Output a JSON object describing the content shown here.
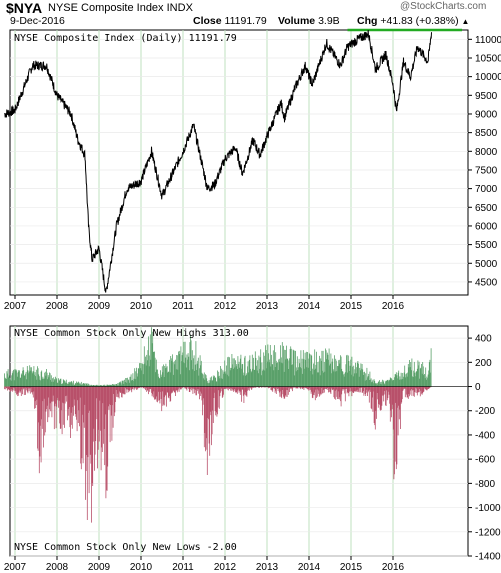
{
  "header": {
    "ticker": "$NYA",
    "name": "NYSE Composite Index",
    "index_type": "INDX",
    "date": "9-Dec-2016",
    "close_label": "Close",
    "close_value": "11191.79",
    "volume_label": "Volume",
    "volume_value": "3.9B",
    "chg_label": "Chg",
    "chg_value": "+41.83 (+0.38%)",
    "watermark": "@StockCharts.com"
  },
  "colors": {
    "price_line": "#000000",
    "resistance_line": "#22aa22",
    "new_highs": "#5aa06a",
    "new_lows": "#b8506a",
    "grid": "#bfe0bf"
  },
  "chart_data": [
    {
      "type": "line",
      "title": "NYSE Composite Index (Daily) 11191.79",
      "series_name": "NYSE Composite Index (Daily)",
      "x_tick_labels": [
        "2007",
        "2008",
        "2009",
        "2010",
        "2011",
        "2012",
        "2013",
        "2014",
        "2015",
        "2016"
      ],
      "y_ticks": [
        4500,
        5000,
        5500,
        6000,
        6500,
        7000,
        7500,
        8000,
        8500,
        9000,
        9500,
        10000,
        10500,
        11000
      ],
      "ylim": [
        4150,
        11250
      ],
      "resistance_level": 11250,
      "x": [
        "2006-10",
        "2007-01",
        "2007-06",
        "2007-10",
        "2008-01",
        "2008-05",
        "2008-07",
        "2008-09",
        "2008-10",
        "2008-11",
        "2009-01",
        "2009-03",
        "2009-06",
        "2009-09",
        "2010-01",
        "2010-04",
        "2010-07",
        "2011-01",
        "2011-04",
        "2011-08",
        "2011-10",
        "2012-01",
        "2012-04",
        "2012-06",
        "2012-09",
        "2012-11",
        "2013-01",
        "2013-05",
        "2013-06",
        "2013-09",
        "2013-12",
        "2014-01",
        "2014-02",
        "2014-06",
        "2014-10",
        "2014-12",
        "2015-03",
        "2015-06",
        "2015-08",
        "2015-11",
        "2016-01",
        "2016-02",
        "2016-04",
        "2016-06",
        "2016-08",
        "2016-11",
        "2016-12"
      ],
      "y": [
        9000,
        9100,
        10300,
        10300,
        9500,
        9000,
        8300,
        7900,
        6000,
        5100,
        5400,
        4200,
        6000,
        7000,
        7200,
        8000,
        6800,
        8000,
        8700,
        7000,
        7100,
        7800,
        8100,
        7400,
        8300,
        7900,
        8400,
        9300,
        8900,
        9700,
        10300,
        10000,
        9800,
        10900,
        10300,
        10800,
        11000,
        11150,
        10200,
        10600,
        9800,
        9050,
        10400,
        10000,
        10800,
        10400,
        11191.79
      ]
    },
    {
      "type": "bar",
      "series": [
        {
          "name": "NYSE Common Stock Only New Highs",
          "last_value": 313.0
        },
        {
          "name": "NYSE Common Stock Only New Lows",
          "last_value": -2.0
        }
      ],
      "title_highs": "NYSE Common Stock Only New Highs 313.00",
      "title_lows": "NYSE Common Stock Only New Lows -2.00",
      "x_tick_labels": [
        "2007",
        "2008",
        "2009",
        "2010",
        "2011",
        "2012",
        "2013",
        "2014",
        "2015",
        "2016"
      ],
      "y_ticks": [
        400,
        200,
        0,
        -200,
        -400,
        -600,
        -800,
        -1000,
        -1200,
        -1400
      ],
      "ylim": [
        -1400,
        500
      ],
      "new_highs_profile": {
        "x": [
          "2006-10",
          "2007-06",
          "2007-10",
          "2008-01",
          "2008-06",
          "2009-01",
          "2009-06",
          "2009-10",
          "2010-01",
          "2010-04",
          "2010-06",
          "2010-09",
          "2010-12",
          "2011-04",
          "2011-08",
          "2011-10",
          "2012-01",
          "2012-04",
          "2012-08",
          "2013-01",
          "2013-06",
          "2013-09",
          "2014-01",
          "2014-06",
          "2014-10",
          "2015-01",
          "2015-06",
          "2015-08",
          "2015-12",
          "2016-03",
          "2016-06",
          "2016-09",
          "2016-11",
          "2016-12"
        ],
        "y": [
          120,
          150,
          130,
          60,
          40,
          10,
          20,
          80,
          200,
          450,
          120,
          200,
          280,
          380,
          60,
          80,
          200,
          240,
          220,
          290,
          320,
          250,
          260,
          270,
          230,
          220,
          120,
          40,
          60,
          120,
          200,
          180,
          150,
          313
        ]
      },
      "new_lows_profile": {
        "x": [
          "2006-10",
          "2007-02",
          "2007-06",
          "2007-08",
          "2007-11",
          "2008-01",
          "2008-03",
          "2008-06",
          "2008-07",
          "2008-10",
          "2008-11",
          "2008-12",
          "2009-03",
          "2009-06",
          "2010-01",
          "2010-05",
          "2010-07",
          "2011-01",
          "2011-06",
          "2011-08",
          "2011-10",
          "2012-01",
          "2012-05",
          "2012-06",
          "2012-09",
          "2013-01",
          "2013-06",
          "2013-09",
          "2014-01",
          "2014-02",
          "2014-06",
          "2014-10",
          "2014-12",
          "2015-03",
          "2015-06",
          "2015-08",
          "2015-09",
          "2015-12",
          "2016-01",
          "2016-02",
          "2016-04",
          "2016-06",
          "2016-09",
          "2016-12"
        ],
        "y": [
          -20,
          -80,
          -60,
          -650,
          -200,
          -500,
          -300,
          -450,
          -300,
          -1300,
          -1000,
          -600,
          -900,
          -100,
          -10,
          -100,
          -200,
          -10,
          -100,
          -720,
          -300,
          -20,
          -60,
          -150,
          -10,
          -10,
          -100,
          -20,
          -30,
          -120,
          -30,
          -150,
          -90,
          -40,
          -90,
          -320,
          -200,
          -220,
          -850,
          -650,
          -90,
          -90,
          -70,
          -2
        ]
      }
    }
  ]
}
